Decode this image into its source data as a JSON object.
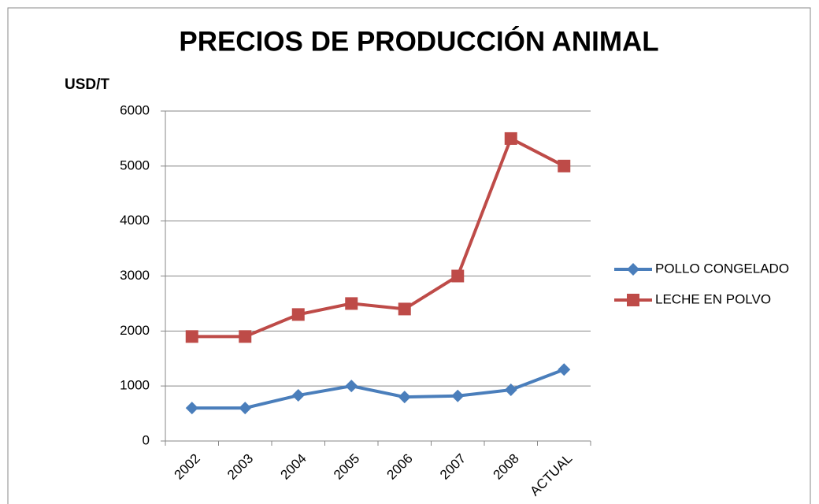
{
  "chart_data": {
    "type": "line",
    "title": "PRECIOS DE PRODUCCIÓN ANIMAL",
    "y_label": "USD/T",
    "categories": [
      "2002",
      "2003",
      "2004",
      "2005",
      "2006",
      "2007",
      "2008",
      "ACTUAL"
    ],
    "series": [
      {
        "name": "POLLO CONGELADO",
        "color": "#4a7ebb",
        "marker": "diamond",
        "values": [
          600,
          600,
          830,
          1000,
          800,
          820,
          930,
          1300
        ]
      },
      {
        "name": "LECHE EN POLVO",
        "color": "#be4b48",
        "marker": "square",
        "values": [
          1900,
          1900,
          2300,
          2500,
          2400,
          3000,
          5500,
          5000
        ]
      }
    ],
    "ylim": [
      0,
      6000
    ],
    "yticks": [
      0,
      1000,
      2000,
      3000,
      4000,
      5000,
      6000
    ],
    "grid": true,
    "legend": "right"
  }
}
